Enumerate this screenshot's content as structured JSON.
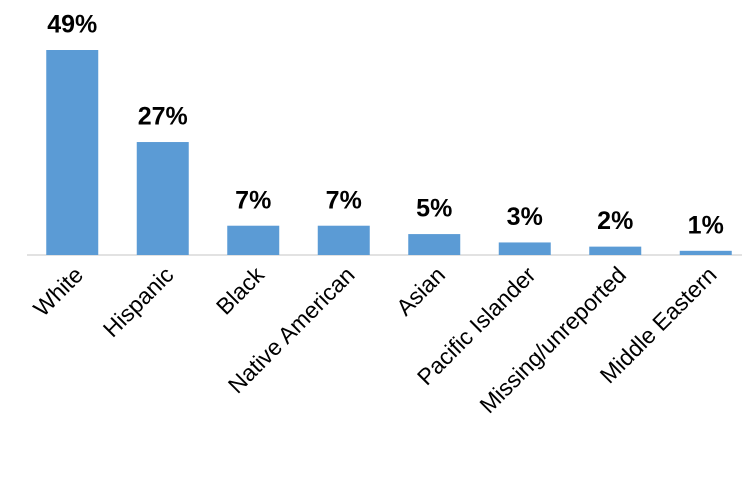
{
  "chart_data": {
    "type": "bar",
    "categories": [
      "White",
      "Hispanic",
      "Black",
      "Native American",
      "Asian",
      "Pacific Islander",
      "Missing/unreported",
      "Middle Eastern"
    ],
    "values": [
      49,
      27,
      7,
      7,
      5,
      3,
      2,
      1
    ],
    "value_labels": [
      "49%",
      "27%",
      "7%",
      "7%",
      "5%",
      "3%",
      "2%",
      "1%"
    ],
    "color": "#5b9bd5"
  }
}
